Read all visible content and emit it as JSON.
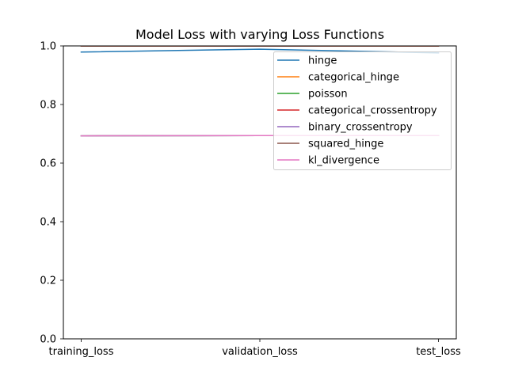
{
  "chart_data": {
    "type": "line",
    "title": "Model Loss with varying Loss Functions",
    "xlabel": "",
    "ylabel": "",
    "categories": [
      "training_loss",
      "validation_loss",
      "test_loss"
    ],
    "ylim": [
      0.0,
      1.0
    ],
    "yticks": [
      0.0,
      0.2,
      0.4,
      0.6,
      0.8,
      1.0
    ],
    "ytick_labels": [
      "0.0",
      "0.2",
      "0.4",
      "0.6",
      "0.8",
      "1.0"
    ],
    "grid": false,
    "legend_position": "top-right",
    "series": [
      {
        "name": "hinge",
        "color": "#1f77b4",
        "values": [
          0.979,
          0.989,
          0.976
        ]
      },
      {
        "name": "categorical_hinge",
        "color": "#ff7f0e",
        "values": [
          1.0,
          1.0,
          1.0
        ]
      },
      {
        "name": "poisson",
        "color": "#2ca02c",
        "values": [
          0.693,
          0.694,
          0.694
        ]
      },
      {
        "name": "categorical_crossentropy",
        "color": "#d62728",
        "values": [
          1.0,
          1.0,
          1.0
        ]
      },
      {
        "name": "binary_crossentropy",
        "color": "#9467bd",
        "values": [
          0.693,
          0.694,
          0.694
        ]
      },
      {
        "name": "squared_hinge",
        "color": "#8c564b",
        "values": [
          1.0,
          1.0,
          1.0
        ]
      },
      {
        "name": "kl_divergence",
        "color": "#e377c2",
        "values": [
          0.693,
          0.694,
          0.694
        ]
      }
    ]
  }
}
